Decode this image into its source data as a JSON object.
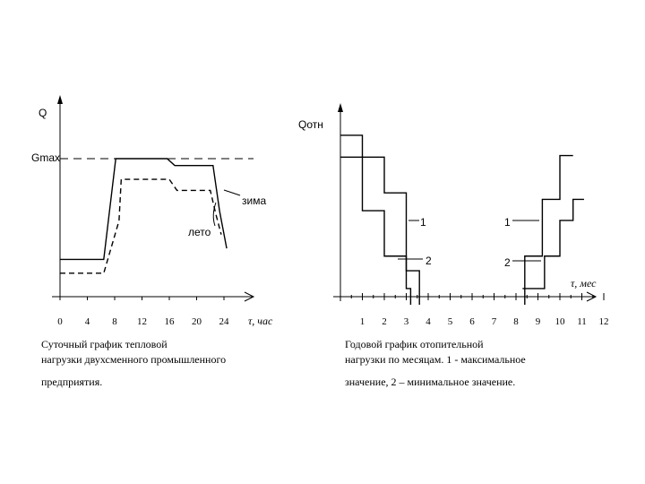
{
  "chart_data": [
    {
      "type": "line",
      "y_label": "Q",
      "qmax_label": "Gmax",
      "x_ticks": [
        "0",
        "4",
        "8",
        "12",
        "16",
        "20",
        "24"
      ],
      "x_label": "τ, час",
      "qmax_value": 1.0,
      "series": [
        {
          "name": "зима",
          "style": "solid",
          "points": [
            [
              0,
              0.27
            ],
            [
              8,
              0.27
            ],
            [
              10.2,
              1.0
            ],
            [
              19.6,
              1.0
            ],
            [
              21,
              0.95
            ],
            [
              28,
              0.95
            ],
            [
              29.2,
              0.62
            ],
            [
              30.5,
              0.35
            ]
          ]
        },
        {
          "name": "лето",
          "style": "dashed",
          "points": [
            [
              0,
              0.17
            ],
            [
              8,
              0.17
            ],
            [
              10.8,
              0.55
            ],
            [
              11.2,
              0.85
            ],
            [
              20,
              0.85
            ],
            [
              21.4,
              0.77
            ],
            [
              27.5,
              0.77
            ],
            [
              28.5,
              0.6
            ],
            [
              29.5,
              0.45
            ]
          ]
        }
      ],
      "caption": [
        "Суточный график тепловой",
        "нагрузки двухсменного промышленного",
        "предприятия."
      ]
    },
    {
      "type": "line",
      "y_label": "Qотн",
      "x_label": "τ, мес",
      "x_ticks": [
        "1",
        "2",
        "3",
        "4",
        "5",
        "6",
        "7",
        "8",
        "9",
        "10",
        "11",
        "12"
      ],
      "series": [
        {
          "name": "1",
          "style": "step",
          "points": [
            [
              0,
              0.995
            ],
            [
              1,
              0.995
            ],
            [
              1,
              0.86
            ],
            [
              2,
              0.86
            ],
            [
              2,
              0.64
            ],
            [
              3,
              0.64
            ],
            [
              3,
              0.16
            ],
            [
              3.6,
              0.16
            ],
            [
              3.6,
              -0.05
            ]
          ]
        },
        {
          "name": "2",
          "style": "step",
          "points": [
            [
              0,
              0.86
            ],
            [
              1,
              0.86
            ],
            [
              1,
              0.53
            ],
            [
              2,
              0.53
            ],
            [
              2,
              0.25
            ],
            [
              3,
              0.25
            ],
            [
              3,
              0.05
            ],
            [
              3.2,
              0.05
            ],
            [
              3.2,
              -0.05
            ]
          ]
        },
        {
          "name": "1",
          "style": "step",
          "points": [
            [
              8.4,
              -0.05
            ],
            [
              8.4,
              0.25
            ],
            [
              9.2,
              0.25
            ],
            [
              9.2,
              0.6
            ],
            [
              10,
              0.6
            ],
            [
              10,
              0.87
            ],
            [
              10.6,
              0.87
            ]
          ]
        },
        {
          "name": "2",
          "style": "step",
          "points": [
            [
              8.3,
              0.05
            ],
            [
              9.3,
              0.05
            ],
            [
              9.3,
              0.25
            ],
            [
              10,
              0.25
            ],
            [
              10,
              0.47
            ],
            [
              10.6,
              0.47
            ],
            [
              10.6,
              0.6
            ],
            [
              11.1,
              0.6
            ]
          ]
        }
      ],
      "labels": [
        "1",
        "2",
        "1",
        "2"
      ],
      "caption": [
        "Годовой график отопительной",
        "нагрузки по месяцам. 1 - максимальное",
        "значение, 2 – минимальное значение."
      ]
    }
  ]
}
